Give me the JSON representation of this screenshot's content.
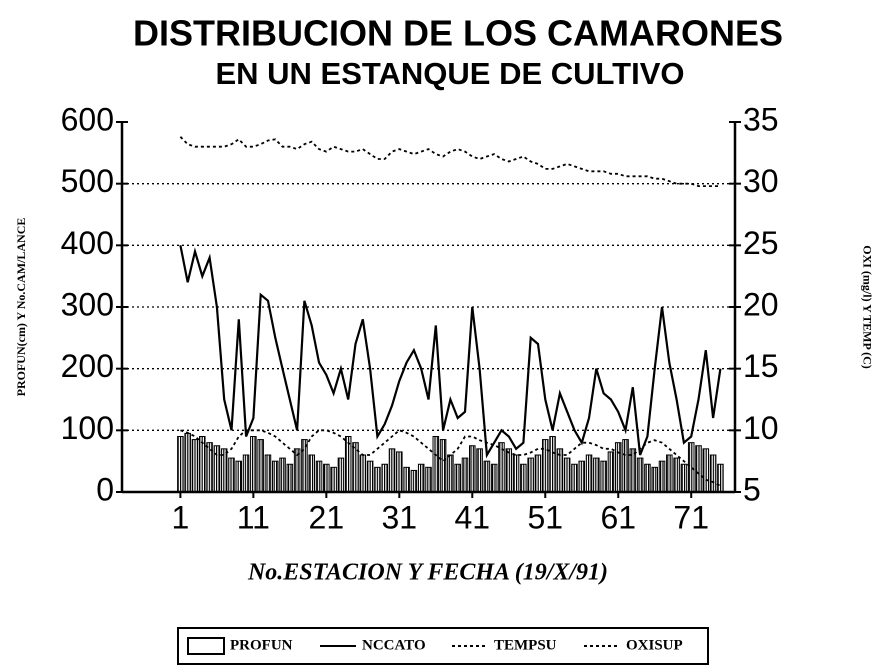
{
  "chart_data": {
    "type": "bar",
    "title": "DISTRIBUCION DE LOS CAMARONES",
    "subtitle": "EN UN ESTANQUE DE CULTIVO",
    "x_label": "No.ESTACION Y FECHA (19/X/91)",
    "y_label": "PROFUN(cm) Y No.CAM/LANCE",
    "y2_label": "OXI (mg/l) Y TEMP (C)",
    "x": [
      1,
      2,
      3,
      4,
      5,
      6,
      7,
      8,
      9,
      10,
      11,
      12,
      13,
      14,
      15,
      16,
      17,
      18,
      19,
      20,
      21,
      22,
      23,
      24,
      25,
      26,
      27,
      28,
      29,
      30,
      31,
      32,
      33,
      34,
      35,
      36,
      37,
      38,
      39,
      40,
      41,
      42,
      43,
      44,
      45,
      46,
      47,
      48,
      49,
      50,
      51,
      52,
      53,
      54,
      55,
      56,
      57,
      58,
      59,
      60,
      61,
      62,
      63,
      64,
      65,
      66,
      67,
      68,
      69,
      70,
      71,
      72,
      73,
      74,
      75
    ],
    "xlim": [
      -7,
      77
    ],
    "xticks": [
      1,
      11,
      21,
      31,
      41,
      51,
      61,
      71
    ],
    "ylim": [
      0,
      600
    ],
    "yticks": [
      0,
      100,
      200,
      300,
      400,
      500,
      600
    ],
    "y2lim": [
      5,
      35
    ],
    "y2ticks": [
      5,
      10,
      15,
      20,
      25,
      30,
      35
    ],
    "grid": true,
    "legend": "bottom",
    "series": [
      {
        "name": "PROFUN",
        "type": "bar",
        "color": "#000000",
        "values": [
          90,
          95,
          85,
          90,
          80,
          75,
          70,
          55,
          50,
          60,
          90,
          85,
          60,
          50,
          55,
          45,
          70,
          85,
          60,
          50,
          45,
          40,
          55,
          90,
          80,
          60,
          50,
          40,
          45,
          70,
          65,
          40,
          35,
          45,
          40,
          90,
          85,
          60,
          45,
          55,
          75,
          70,
          50,
          45,
          80,
          70,
          60,
          45,
          55,
          60,
          85,
          90,
          70,
          55,
          45,
          50,
          60,
          55,
          50,
          65,
          80,
          85,
          70,
          55,
          45,
          40,
          50,
          60,
          55,
          45,
          80,
          75,
          70,
          60,
          45
        ]
      },
      {
        "name": "NCCATO",
        "type": "line",
        "color": "#000000",
        "dash": "solid",
        "values": [
          400,
          340,
          390,
          350,
          380,
          300,
          150,
          100,
          280,
          90,
          120,
          320,
          310,
          250,
          200,
          150,
          100,
          310,
          270,
          210,
          190,
          160,
          200,
          150,
          240,
          280,
          200,
          90,
          110,
          140,
          180,
          210,
          230,
          200,
          150,
          270,
          100,
          150,
          120,
          130,
          300,
          200,
          60,
          80,
          100,
          90,
          70,
          80,
          250,
          240,
          150,
          100,
          160,
          130,
          100,
          80,
          120,
          200,
          160,
          150,
          130,
          100,
          170,
          60,
          90,
          200,
          300,
          210,
          150,
          80,
          90,
          150,
          230,
          120,
          200
        ]
      },
      {
        "name": "TEMPSU",
        "type": "line",
        "axis": "y2",
        "color": "#000000",
        "dash": "dashed",
        "values": [
          33.8,
          33.2,
          33.0,
          33.0,
          33.0,
          33.0,
          33.0,
          33.2,
          33.6,
          33.0,
          33.0,
          33.2,
          33.5,
          33.6,
          33.0,
          33.0,
          32.8,
          33.2,
          33.4,
          32.8,
          32.6,
          33.0,
          32.8,
          32.6,
          32.6,
          32.8,
          32.4,
          32.0,
          32.0,
          32.6,
          32.8,
          32.6,
          32.4,
          32.6,
          32.8,
          32.4,
          32.2,
          32.6,
          32.8,
          32.6,
          32.2,
          32.0,
          32.2,
          32.4,
          32.0,
          31.8,
          32.0,
          32.2,
          31.8,
          31.6,
          31.2,
          31.2,
          31.4,
          31.6,
          31.4,
          31.2,
          31.0,
          31.0,
          31.0,
          30.8,
          30.8,
          30.6,
          30.6,
          30.6,
          30.6,
          30.4,
          30.4,
          30.2,
          30.0,
          30.0,
          30.0,
          29.8,
          29.8,
          29.8,
          29.8
        ]
      },
      {
        "name": "OXISUP",
        "type": "line",
        "axis": "y2",
        "color": "#000000",
        "dash": "dashed",
        "values": [
          10,
          9.8,
          9.5,
          9,
          8.5,
          8,
          8,
          8.5,
          9.5,
          10,
          10,
          10,
          9.8,
          9.5,
          9,
          8.5,
          8,
          8.5,
          9.5,
          10,
          10,
          9.8,
          9.5,
          9,
          8.5,
          8,
          8,
          8.5,
          9,
          9.5,
          10,
          9.8,
          9.5,
          9,
          8.5,
          8,
          7.5,
          8,
          8.5,
          9.5,
          9.5,
          9.2,
          9,
          8.8,
          8.5,
          8.2,
          8,
          8,
          8.2,
          8.5,
          8.5,
          8.2,
          8,
          8,
          8.5,
          9,
          9,
          8.8,
          8.5,
          8.5,
          8.2,
          8,
          8,
          8.5,
          9,
          9.2,
          9,
          8.5,
          8,
          7.5,
          7,
          6.5,
          6,
          5.8,
          5.5
        ]
      }
    ]
  }
}
